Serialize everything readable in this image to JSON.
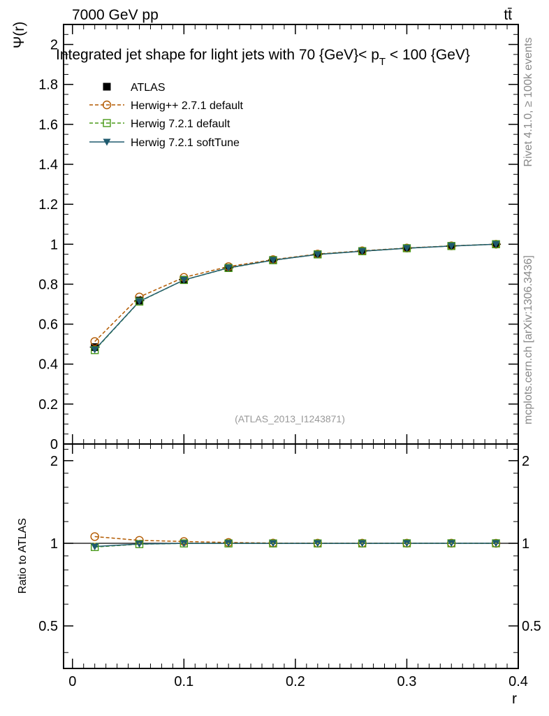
{
  "header": {
    "energy": "7000 GeV pp",
    "process": "tt̄",
    "plot_title_pre": "Integrated jet shape for light jets with 70 {GeV}< p",
    "plot_title_sub": "T",
    "plot_title_post": " < 100 {GeV}",
    "side_rivet": "Rivet 4.1.0, ≥ 100k events",
    "side_mcplots": "mcplots.cern.ch [arXiv:1306.3436]",
    "analysis_id": "(ATLAS_2013_I1243871)"
  },
  "colors": {
    "atlas": "#000000",
    "herwigpp": "#b35a00",
    "herwig721": "#4a9a1a",
    "softtune": "#1f5a6e"
  },
  "chart_data": [
    {
      "type": "line",
      "title": "Integrated jet shape for light jets with 70 {GeV}< p_T < 100 {GeV}",
      "xlabel": "r",
      "ylabel": "Ψ(r)",
      "xlim": [
        -0.008,
        0.4
      ],
      "ylim": [
        0,
        2.1
      ],
      "x_ticks": [
        0,
        0.1,
        0.2,
        0.3,
        0.4
      ],
      "x_tick_labels": [
        "0",
        "0.1",
        "0.2",
        "0.3",
        "0.4"
      ],
      "y_ticks": [
        0,
        0.2,
        0.4,
        0.6,
        0.8,
        1,
        1.2,
        1.4,
        1.6,
        1.8,
        2
      ],
      "y_tick_labels": [
        "0",
        "0.2",
        "0.4",
        "0.6",
        "0.8",
        "1",
        "1.2",
        "1.4",
        "1.6",
        "1.8",
        "2"
      ],
      "x": [
        0.02,
        0.06,
        0.1,
        0.14,
        0.18,
        0.22,
        0.26,
        0.3,
        0.34,
        0.38
      ],
      "series": [
        {
          "name": "ATLAS",
          "values": [
            0.485,
            0.718,
            0.822,
            0.882,
            0.921,
            0.95,
            0.966,
            0.98,
            0.991,
            1.0
          ]
        },
        {
          "name": "Herwig++ 2.7.1 default",
          "values": [
            0.513,
            0.736,
            0.834,
            0.888,
            0.923,
            0.951,
            0.967,
            0.981,
            0.992,
            1.0
          ]
        },
        {
          "name": "Herwig 7.2.1 default",
          "values": [
            0.47,
            0.713,
            0.821,
            0.881,
            0.92,
            0.949,
            0.965,
            0.98,
            0.991,
            1.0
          ]
        },
        {
          "name": "Herwig 7.2.1 softTune",
          "values": [
            0.472,
            0.714,
            0.821,
            0.882,
            0.92,
            0.949,
            0.965,
            0.98,
            0.991,
            1.0
          ]
        }
      ],
      "legend": [
        "ATLAS",
        "Herwig++ 2.7.1 default",
        "Herwig 7.2.1 default",
        "Herwig 7.2.1 softTune"
      ]
    },
    {
      "type": "line",
      "title": "",
      "xlabel": "r",
      "ylabel": "Ratio to ATLAS",
      "xlim": [
        -0.008,
        0.4
      ],
      "ylim": [
        0.35,
        2.3
      ],
      "y_ticks": [
        0.5,
        1,
        2
      ],
      "y_tick_labels": [
        "0.5",
        "1",
        "2"
      ],
      "x": [
        0.02,
        0.06,
        0.1,
        0.14,
        0.18,
        0.22,
        0.26,
        0.3,
        0.34,
        0.38
      ],
      "series": [
        {
          "name": "Herwig++ 2.7.1 default",
          "values": [
            1.058,
            1.025,
            1.015,
            1.007,
            1.002,
            1.001,
            1.001,
            1.001,
            1.001,
            1.0
          ]
        },
        {
          "name": "Herwig 7.2.1 default",
          "values": [
            0.969,
            0.993,
            0.999,
            0.999,
            0.999,
            0.999,
            0.999,
            1.0,
            1.0,
            1.0
          ]
        },
        {
          "name": "Herwig 7.2.1 softTune",
          "values": [
            0.973,
            0.994,
            0.999,
            1.0,
            0.999,
            0.999,
            0.999,
            1.0,
            1.0,
            1.0
          ]
        }
      ]
    }
  ]
}
